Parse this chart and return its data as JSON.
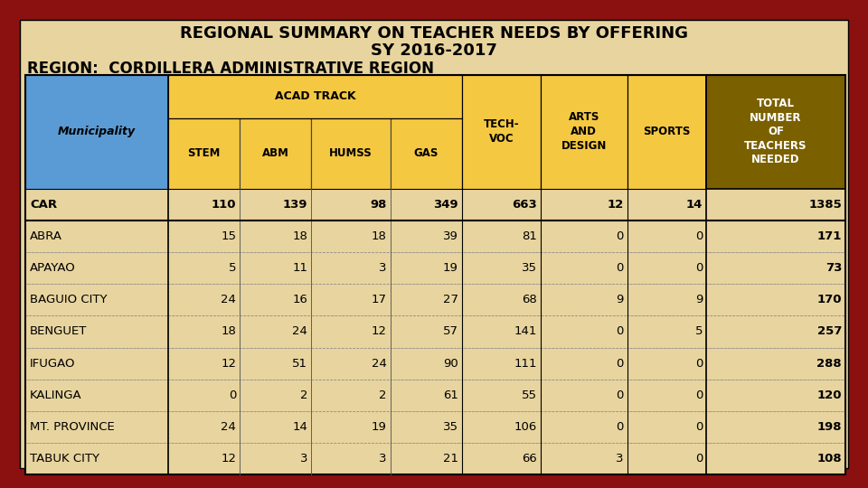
{
  "title1": "REGIONAL SUMMARY ON TEACHER NEEDS BY OFFERING",
  "title2": "SY 2016-2017",
  "title3": "REGION:  CORDILLERA ADMINISTRATIVE REGION",
  "bg_color": "#E8D49E",
  "border_outer": "#8B1010",
  "header_blue": "#5B9BD5",
  "header_gold": "#F5C842",
  "header_dark_gold": "#7B6000",
  "rows": [
    [
      "CAR",
      110,
      139,
      98,
      349,
      663,
      12,
      14,
      1385
    ],
    [
      "ABRA",
      15,
      18,
      18,
      39,
      81,
      0,
      0,
      171
    ],
    [
      "APAYAO",
      5,
      11,
      3,
      19,
      35,
      0,
      0,
      73
    ],
    [
      "BAGUIO CITY",
      24,
      16,
      17,
      27,
      68,
      9,
      9,
      170
    ],
    [
      "BENGUET",
      18,
      24,
      12,
      57,
      141,
      0,
      5,
      257
    ],
    [
      "IFUGAO",
      12,
      51,
      24,
      90,
      111,
      0,
      0,
      288
    ],
    [
      "KALINGA",
      0,
      2,
      2,
      61,
      55,
      0,
      0,
      120
    ],
    [
      "MT. PROVINCE",
      24,
      14,
      19,
      35,
      106,
      0,
      0,
      198
    ],
    [
      "TABUK CITY",
      12,
      3,
      3,
      21,
      66,
      3,
      0,
      108
    ]
  ],
  "col_widths": [
    1.9,
    0.95,
    0.95,
    1.05,
    0.95,
    1.05,
    1.15,
    1.05,
    1.85
  ],
  "title_fontsize": 12,
  "header_fontsize": 8.5,
  "data_fontsize": 9.5
}
